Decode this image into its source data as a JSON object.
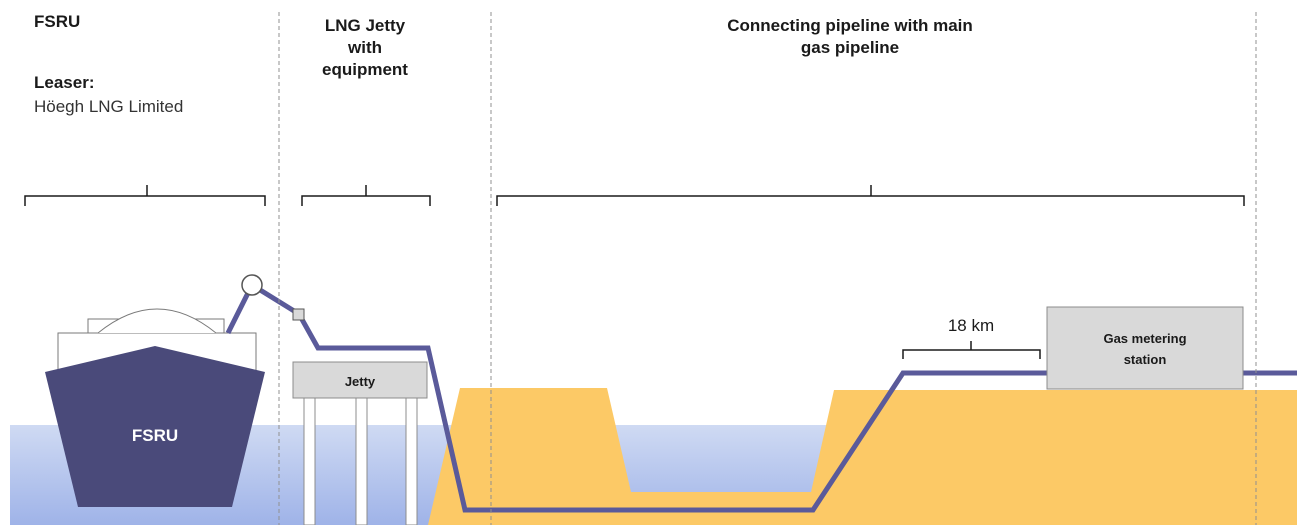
{
  "colors": {
    "pipeline": "#5a5a9a",
    "ship_hull": "#4a4a7a",
    "land": "#fcc966",
    "water_top": "#cfdaf3",
    "water_bottom": "#9fb3e8",
    "box_fill": "#d9d9d9",
    "box_stroke": "#8c8c8c",
    "divider": "#909090",
    "bracket": "#1a1a1a"
  },
  "sections": {
    "fsru": {
      "title": "FSRU",
      "leaser_label": "Leaser:",
      "leaser_name": "Höegh LNG Limited"
    },
    "jetty": {
      "title_line1": "LNG Jetty",
      "title_line2": "with",
      "title_line3": "equipment"
    },
    "pipeline": {
      "title_line1": "Connecting pipeline with main",
      "title_line2": "gas pipeline"
    }
  },
  "elements": {
    "ship_label": "FSRU",
    "jetty_label": "Jetty",
    "distance_label": "18 km",
    "station_line1": "Gas metering",
    "station_line2": "station"
  }
}
